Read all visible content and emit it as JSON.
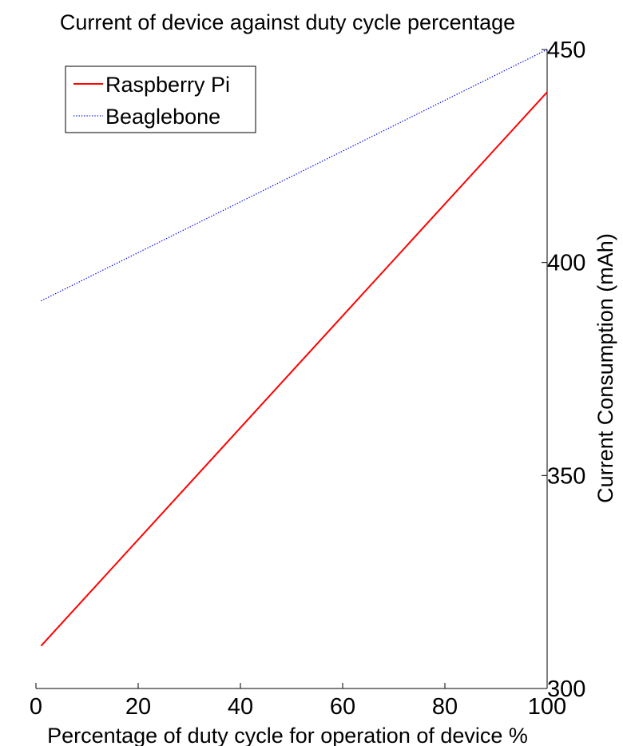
{
  "chart_data": {
    "type": "line",
    "title": "Current of device against duty cycle percentage",
    "xlabel": "Percentage of duty cycle for operation of device %",
    "ylabel": "Current Consumption (mAh)",
    "xlim": [
      0,
      100
    ],
    "ylim": [
      300,
      450
    ],
    "x_ticks": [
      0,
      20,
      40,
      60,
      80,
      100
    ],
    "y_ticks": [
      300,
      350,
      400,
      450
    ],
    "y_axis_position": "right",
    "grid": false,
    "legend_position": "top-left",
    "series": [
      {
        "name": "Raspberry Pi",
        "color": "#ff0000",
        "style": "solid",
        "x": [
          1,
          100
        ],
        "y": [
          310,
          440
        ]
      },
      {
        "name": "Beaglebone",
        "color": "#0000ff",
        "style": "dotted",
        "x": [
          1,
          100
        ],
        "y": [
          391,
          450
        ]
      }
    ]
  }
}
